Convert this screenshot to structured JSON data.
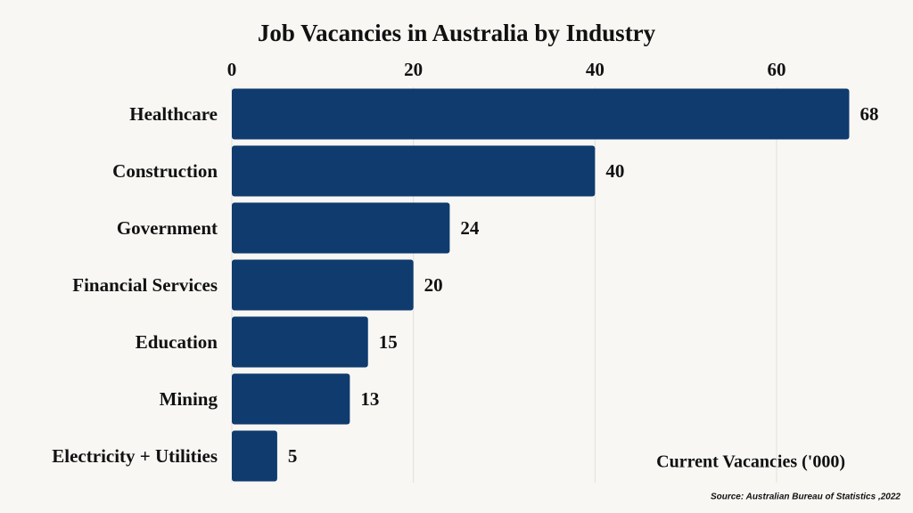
{
  "chart_data": {
    "type": "bar",
    "orientation": "horizontal",
    "title": "Job Vacancies in Australia by Industry",
    "categories": [
      "Healthcare",
      "Construction",
      "Government",
      "Financial Services",
      "Education",
      "Mining",
      "Electricity + Utilities"
    ],
    "values": [
      68,
      40,
      24,
      20,
      15,
      13,
      5
    ],
    "color": "#0f3b6e",
    "xlabel": "Current Vacancies ('000)",
    "source": "Source: Australian Bureau of Statistics ,2022",
    "xlim": [
      0,
      70
    ],
    "xticks": [
      0,
      20,
      40,
      60
    ],
    "grid": true
  }
}
